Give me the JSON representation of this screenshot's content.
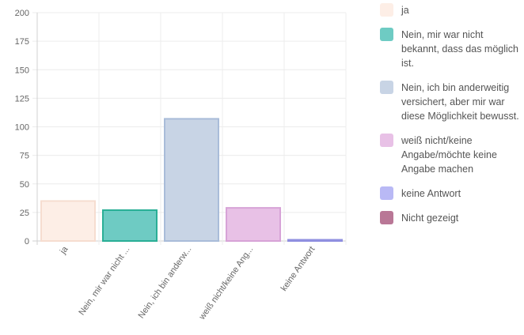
{
  "chart_data": {
    "type": "bar",
    "categories": [
      "ja",
      "Nein, mir war nicht ...",
      "Nein, ich bin anderw...",
      "weiß nicht/keine Ang...",
      "keine Antwort"
    ],
    "values": [
      35,
      27,
      107,
      29,
      0.5
    ],
    "ylim": [
      0,
      200
    ],
    "yticks": [
      0,
      25,
      50,
      75,
      100,
      125,
      150,
      175,
      200
    ],
    "grid": true,
    "legend_position": "right",
    "legend": [
      {
        "label": "ja",
        "fill": "#fdeee6",
        "border": "#f6ddd0"
      },
      {
        "label": "Nein, mir war nicht bekannt, dass das möglich ist.",
        "fill": "#6ecbc3",
        "border": "#2aaf96"
      },
      {
        "label": "Nein, ich bin anderweitig versichert, aber mir war diese Möglichkeit bewusst.",
        "fill": "#c8d4e5",
        "border": "#a9bcd9"
      },
      {
        "label": "weiß nicht/keine Angabe/möchte keine Angabe machen",
        "fill": "#e8c1e6",
        "border": "#d7a3d7"
      },
      {
        "label": "keine Antwort",
        "fill": "#b9b9f5",
        "border": "#8f8fe0"
      },
      {
        "label": "Nicht gezeigt",
        "fill": "#b97796",
        "border": "#a5607f"
      }
    ]
  }
}
